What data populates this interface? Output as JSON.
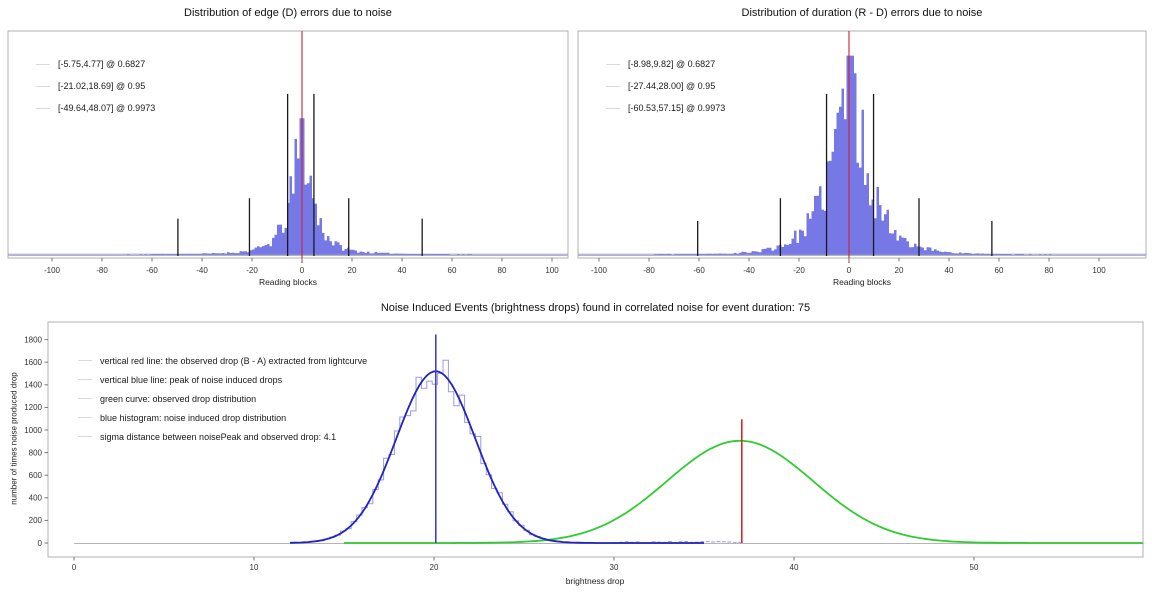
{
  "colors": {
    "histogram_fill": "#7678e6",
    "histogram_step_outline": "#9b9be0",
    "noise_fit_curve": "#2222c0",
    "observed_curve": "#2ecc2e",
    "red_line_top": "#cc2233",
    "red_line_bottom": "#d42a2a",
    "blue_vline": "#3434d4",
    "sigma_marker": "#1a1a1a",
    "axis_border": "#b0b0b0",
    "baseline_gray": "#b5b5b5",
    "legend_key_gray": "#d9d9d9"
  },
  "chart_data": [
    {
      "id": "edge-error-distribution",
      "type": "bar",
      "variant": "histogram",
      "title": "Distribution of edge (D) errors due to noise",
      "xlabel": "Reading blocks",
      "ylabel": "",
      "xlim": [
        -117,
        107
      ],
      "xticks": [
        -100,
        -80,
        -60,
        -40,
        -20,
        0,
        20,
        40,
        60,
        80,
        100
      ],
      "grid": false,
      "legend_position": "upper left",
      "legend": [
        "[-5.75,4.77] @ 0.6827",
        "[-21.02,18.69] @ 0.95",
        "[-49.64,48.07] @ 0.9973"
      ],
      "red_vline_x": 0,
      "sigma_intervals": [
        {
          "range": [
            -5.75,
            4.77
          ],
          "coverage": 0.6827,
          "marker_top_frac": 0.71
        },
        {
          "range": [
            -21.02,
            18.69
          ],
          "coverage": 0.95,
          "marker_top_frac": 0.25
        },
        {
          "range": [
            -49.64,
            48.07
          ],
          "coverage": 0.9973,
          "marker_top_frac": 0.16
        }
      ],
      "hist_model": {
        "bin_width": 1,
        "peak_frac_cap": 0.61,
        "components": [
          {
            "amp": 0.62,
            "scale": 4.4
          },
          {
            "amp": 0.04,
            "scale": 20
          }
        ]
      }
    },
    {
      "id": "duration-error-distribution",
      "type": "bar",
      "variant": "histogram",
      "title": "Distribution of duration (R - D) errors due to noise",
      "xlabel": "Reading blocks",
      "ylabel": "",
      "xlim": [
        -108,
        119
      ],
      "xticks": [
        -100,
        -80,
        -60,
        -40,
        -20,
        0,
        20,
        40,
        60,
        80,
        100
      ],
      "grid": false,
      "legend_position": "upper left",
      "legend": [
        "[-8.98,9.82] @ 0.6827",
        "[-27.44,28.00] @ 0.95",
        "[-60.53,57.15] @ 0.9973"
      ],
      "red_vline_x": 0,
      "sigma_intervals": [
        {
          "range": [
            -8.98,
            9.82
          ],
          "coverage": 0.6827,
          "marker_top_frac": 0.71
        },
        {
          "range": [
            -27.44,
            28.0
          ],
          "coverage": 0.95,
          "marker_top_frac": 0.25
        },
        {
          "range": [
            -60.53,
            57.15
          ],
          "coverage": 0.9973,
          "marker_top_frac": 0.15
        }
      ],
      "hist_model": {
        "bin_width": 1,
        "peak_frac_cap": 0.89,
        "components": [
          {
            "amp": 0.9,
            "scale": 8.2
          },
          {
            "amp": 0.03,
            "scale": 25
          }
        ]
      }
    },
    {
      "id": "noise-induced-events",
      "type": "line",
      "variant": "histogram+curves",
      "title": "Noise Induced Events (brightness drops) found in correlated noise for event duration: 75",
      "xlabel": "brightness drop",
      "ylabel": "number of times noise produced drop",
      "xlim": [
        -1.5,
        59.5
      ],
      "ylim": [
        -124,
        1956
      ],
      "xticks": [
        0,
        10,
        20,
        30,
        40,
        50
      ],
      "yticks": [
        0,
        200,
        400,
        600,
        800,
        1000,
        1200,
        1400,
        1600,
        1800
      ],
      "grid": false,
      "legend_position": "upper left",
      "legend": [
        "vertical red line: the observed drop (B - A) extracted from lightcurve",
        "vertical blue line: peak of noise induced drops",
        "green curve: observed drop distribution",
        "blue histogram: noise induced drop distribution",
        "sigma distance between noisePeak and observed drop: 4.1"
      ],
      "sigma_distance": 4.1,
      "series": {
        "noise_histogram": {
          "kind": "step",
          "center": 20.1,
          "sigma": 2.2,
          "peak": 1520,
          "bin_width": 0.3,
          "range": [
            12.4,
            30
          ],
          "sparse_tail_to": 37
        },
        "noise_fit_curve": {
          "kind": "gaussian",
          "center": 20.1,
          "sigma": 2.2,
          "peak": 1520
        },
        "observed_curve": {
          "kind": "gaussian",
          "center": 37.0,
          "sigma": 4.05,
          "peak": 905,
          "flat_from": 15,
          "flat_to": 59.4
        },
        "blue_vline": {
          "x": 20.1,
          "y_top": 1845
        },
        "red_vline": {
          "x": 37.1,
          "y_top": 1095
        }
      }
    }
  ]
}
